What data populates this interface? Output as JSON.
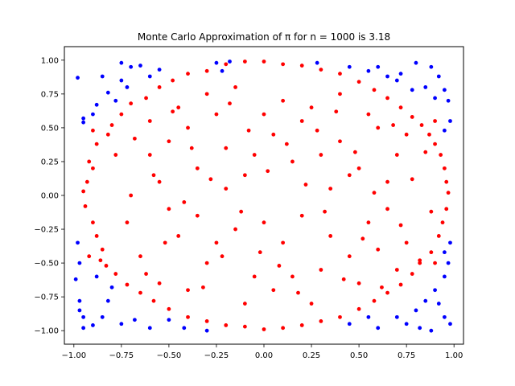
{
  "chart_data": {
    "type": "scatter",
    "title": "Monte Carlo Approximation of π for n = 1000 is 3.18",
    "xlabel": "",
    "ylabel": "",
    "xlim": [
      -1.05,
      1.05
    ],
    "ylim": [
      -1.1,
      1.1
    ],
    "grid": false,
    "n": 1000,
    "estimate": 3.18,
    "xticks": [
      -1.0,
      -0.75,
      -0.5,
      -0.25,
      0.0,
      0.25,
      0.5,
      0.75,
      1.0
    ],
    "yticks": [
      -1.0,
      -0.75,
      -0.5,
      -0.25,
      0.0,
      0.25,
      0.5,
      0.75,
      1.0
    ],
    "xtick_labels": [
      "−1.00",
      "−0.75",
      "−0.50",
      "−0.25",
      "0.00",
      "0.25",
      "0.50",
      "0.75",
      "1.00"
    ],
    "ytick_labels": [
      "−1.00",
      "−0.75",
      "−0.50",
      "−0.25",
      "0.00",
      "0.25",
      "0.50",
      "0.75",
      "1.00"
    ],
    "series": [
      {
        "color": "#ff0000",
        "points": [
          [
            -0.95,
            0.03
          ],
          [
            -0.93,
            0.1
          ],
          [
            -0.9,
            0.2
          ],
          [
            -0.94,
            -0.08
          ],
          [
            -0.9,
            -0.2
          ],
          [
            -0.88,
            -0.3
          ],
          [
            -0.85,
            -0.4
          ],
          [
            -0.92,
            0.25
          ],
          [
            -0.88,
            0.38
          ],
          [
            -0.82,
            0.45
          ],
          [
            -0.8,
            0.52
          ],
          [
            -0.75,
            0.6
          ],
          [
            -0.7,
            0.68
          ],
          [
            -0.62,
            0.72
          ],
          [
            -0.55,
            0.8
          ],
          [
            -0.48,
            0.85
          ],
          [
            -0.4,
            0.9
          ],
          [
            -0.3,
            0.92
          ],
          [
            -0.2,
            0.97
          ],
          [
            -0.1,
            0.99
          ],
          [
            0.0,
            0.99
          ],
          [
            0.1,
            0.97
          ],
          [
            0.2,
            0.96
          ],
          [
            0.3,
            0.93
          ],
          [
            0.4,
            0.9
          ],
          [
            0.5,
            0.84
          ],
          [
            0.58,
            0.78
          ],
          [
            0.65,
            0.72
          ],
          [
            0.72,
            0.65
          ],
          [
            0.78,
            0.58
          ],
          [
            0.83,
            0.52
          ],
          [
            0.87,
            0.45
          ],
          [
            0.9,
            0.38
          ],
          [
            0.93,
            0.3
          ],
          [
            0.95,
            0.2
          ],
          [
            0.96,
            0.1
          ],
          [
            0.97,
            0.02
          ],
          [
            0.96,
            -0.1
          ],
          [
            0.94,
            -0.2
          ],
          [
            0.92,
            -0.3
          ],
          [
            0.88,
            -0.42
          ],
          [
            0.82,
            -0.5
          ],
          [
            0.78,
            -0.58
          ],
          [
            0.72,
            -0.66
          ],
          [
            0.65,
            -0.72
          ],
          [
            0.58,
            -0.78
          ],
          [
            0.5,
            -0.84
          ],
          [
            0.4,
            -0.9
          ],
          [
            0.3,
            -0.93
          ],
          [
            0.2,
            -0.96
          ],
          [
            0.1,
            -0.98
          ],
          [
            0.0,
            -0.99
          ],
          [
            -0.1,
            -0.97
          ],
          [
            -0.2,
            -0.96
          ],
          [
            -0.3,
            -0.93
          ],
          [
            -0.4,
            -0.9
          ],
          [
            -0.5,
            -0.84
          ],
          [
            -0.58,
            -0.78
          ],
          [
            -0.65,
            -0.72
          ],
          [
            -0.72,
            -0.66
          ],
          [
            -0.78,
            -0.58
          ],
          [
            -0.83,
            -0.52
          ],
          [
            -0.86,
            -0.48
          ],
          [
            -0.6,
            0.3
          ],
          [
            -0.55,
            0.1
          ],
          [
            -0.5,
            -0.1
          ],
          [
            -0.45,
            -0.3
          ],
          [
            -0.4,
            0.5
          ],
          [
            -0.35,
            0.2
          ],
          [
            -0.3,
            -0.5
          ],
          [
            -0.25,
            0.6
          ],
          [
            -0.2,
            0.35
          ],
          [
            -0.15,
            -0.25
          ],
          [
            -0.1,
            0.15
          ],
          [
            -0.05,
            -0.6
          ],
          [
            0.05,
            0.45
          ],
          [
            0.1,
            -0.35
          ],
          [
            0.15,
            0.25
          ],
          [
            0.2,
            -0.15
          ],
          [
            0.25,
            0.65
          ],
          [
            0.3,
            -0.55
          ],
          [
            0.35,
            0.05
          ],
          [
            0.4,
            0.4
          ],
          [
            0.45,
            -0.45
          ],
          [
            0.5,
            0.2
          ],
          [
            0.55,
            -0.2
          ],
          [
            0.6,
            0.5
          ],
          [
            0.65,
            -0.1
          ],
          [
            0.7,
            0.3
          ],
          [
            0.75,
            -0.35
          ],
          [
            -0.7,
            0.0
          ],
          [
            -0.65,
            -0.45
          ],
          [
            -0.6,
            0.55
          ],
          [
            -0.55,
            -0.65
          ],
          [
            -0.5,
            0.4
          ],
          [
            -0.45,
            0.65
          ],
          [
            -0.4,
            -0.7
          ],
          [
            -0.35,
            -0.15
          ],
          [
            -0.3,
            0.75
          ],
          [
            -0.25,
            -0.35
          ],
          [
            -0.2,
            0.05
          ],
          [
            -0.15,
            0.8
          ],
          [
            -0.1,
            -0.8
          ],
          [
            -0.05,
            0.3
          ],
          [
            0.0,
            -0.2
          ],
          [
            0.05,
            -0.7
          ],
          [
            0.1,
            0.7
          ],
          [
            0.15,
            -0.6
          ],
          [
            0.2,
            0.55
          ],
          [
            0.25,
            -0.8
          ],
          [
            0.3,
            0.3
          ],
          [
            0.35,
            -0.3
          ],
          [
            0.4,
            0.75
          ],
          [
            0.45,
            0.15
          ],
          [
            0.5,
            -0.65
          ],
          [
            0.55,
            0.6
          ],
          [
            0.6,
            -0.4
          ],
          [
            0.65,
            0.1
          ],
          [
            0.7,
            -0.55
          ],
          [
            0.75,
            0.45
          ],
          [
            -0.78,
            0.3
          ],
          [
            -0.72,
            -0.2
          ],
          [
            -0.68,
            0.42
          ],
          [
            -0.62,
            -0.58
          ],
          [
            -0.58,
            0.15
          ],
          [
            -0.52,
            -0.35
          ],
          [
            -0.48,
            0.62
          ],
          [
            -0.42,
            -0.05
          ],
          [
            -0.38,
            0.35
          ],
          [
            -0.32,
            -0.68
          ],
          [
            -0.28,
            0.12
          ],
          [
            -0.22,
            -0.45
          ],
          [
            -0.18,
            0.68
          ],
          [
            -0.12,
            -0.12
          ],
          [
            -0.08,
            0.48
          ],
          [
            -0.02,
            -0.42
          ],
          [
            0.02,
            0.18
          ],
          [
            0.08,
            -0.52
          ],
          [
            0.12,
            0.38
          ],
          [
            0.18,
            -0.72
          ],
          [
            0.22,
            0.08
          ],
          [
            0.28,
            0.48
          ],
          [
            0.32,
            -0.12
          ],
          [
            0.38,
            0.62
          ],
          [
            0.42,
            -0.62
          ],
          [
            0.48,
            0.32
          ],
          [
            0.52,
            -0.32
          ],
          [
            0.58,
            0.02
          ],
          [
            0.62,
            -0.68
          ],
          [
            0.68,
            0.52
          ],
          [
            0.72,
            -0.22
          ],
          [
            0.78,
            0.12
          ],
          [
            0.82,
            -0.48
          ],
          [
            0.85,
            0.32
          ],
          [
            0.88,
            -0.12
          ],
          [
            -0.9,
            0.48
          ],
          [
            -0.92,
            -0.45
          ],
          [
            0.9,
            0.55
          ],
          [
            0.9,
            -0.5
          ],
          [
            0.0,
            0.6
          ]
        ]
      },
      {
        "color": "#0000ff",
        "points": [
          [
            -0.98,
            0.87
          ],
          [
            -0.95,
            0.57
          ],
          [
            -0.95,
            0.54
          ],
          [
            -0.9,
            0.6
          ],
          [
            -0.88,
            0.67
          ],
          [
            -0.82,
            0.76
          ],
          [
            -0.85,
            0.88
          ],
          [
            -0.75,
            0.98
          ],
          [
            -0.7,
            0.95
          ],
          [
            -0.75,
            0.85
          ],
          [
            -0.78,
            0.7
          ],
          [
            -0.72,
            0.8
          ],
          [
            -0.6,
            0.88
          ],
          [
            -0.55,
            0.93
          ],
          [
            -0.65,
            0.96
          ],
          [
            -0.25,
            0.98
          ],
          [
            -0.18,
            0.99
          ],
          [
            -0.22,
            0.92
          ],
          [
            -0.98,
            -0.35
          ],
          [
            -0.97,
            -0.5
          ],
          [
            -0.99,
            -0.62
          ],
          [
            -0.97,
            -0.78
          ],
          [
            -0.97,
            -0.85
          ],
          [
            -0.95,
            -0.9
          ],
          [
            -0.95,
            -0.98
          ],
          [
            -0.9,
            -0.96
          ],
          [
            -0.85,
            -0.9
          ],
          [
            -0.82,
            -0.78
          ],
          [
            -0.75,
            -0.95
          ],
          [
            -0.68,
            -0.92
          ],
          [
            -0.6,
            -0.98
          ],
          [
            -0.5,
            -0.92
          ],
          [
            -0.42,
            -0.98
          ],
          [
            -0.3,
            -1.0
          ],
          [
            -0.88,
            -0.6
          ],
          [
            -0.8,
            -0.68
          ],
          [
            0.28,
            0.98
          ],
          [
            0.45,
            0.95
          ],
          [
            0.55,
            0.92
          ],
          [
            0.65,
            0.88
          ],
          [
            0.72,
            0.9
          ],
          [
            0.8,
            0.98
          ],
          [
            0.88,
            0.95
          ],
          [
            0.92,
            0.88
          ],
          [
            0.95,
            0.78
          ],
          [
            0.97,
            0.7
          ],
          [
            0.98,
            0.55
          ],
          [
            0.95,
            0.48
          ],
          [
            0.9,
            0.72
          ],
          [
            0.85,
            0.8
          ],
          [
            0.78,
            0.78
          ],
          [
            0.7,
            0.85
          ],
          [
            0.6,
            0.95
          ],
          [
            0.45,
            -0.95
          ],
          [
            0.55,
            -0.9
          ],
          [
            0.6,
            -0.98
          ],
          [
            0.7,
            -0.9
          ],
          [
            0.75,
            -0.95
          ],
          [
            0.8,
            -0.85
          ],
          [
            0.85,
            -0.78
          ],
          [
            0.9,
            -0.7
          ],
          [
            0.95,
            -0.6
          ],
          [
            0.97,
            -0.5
          ],
          [
            0.98,
            -0.35
          ],
          [
            0.95,
            -0.42
          ],
          [
            0.92,
            -0.8
          ],
          [
            0.95,
            -0.9
          ],
          [
            0.98,
            -0.95
          ],
          [
            0.88,
            -1.0
          ],
          [
            0.82,
            -0.98
          ]
        ]
      }
    ]
  }
}
